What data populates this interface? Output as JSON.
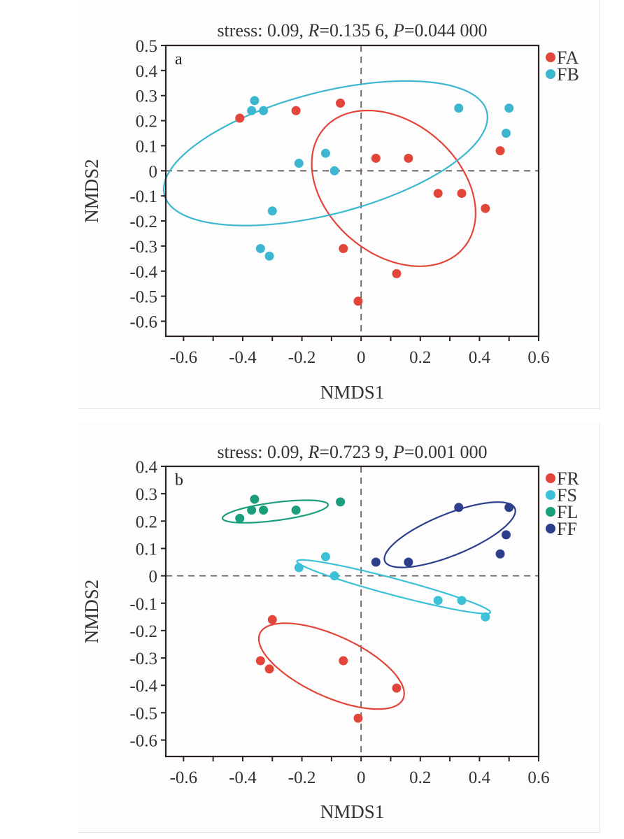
{
  "chart_data": [
    {
      "type": "scatter",
      "panel_label": "a",
      "title_parts": {
        "prefix": "stress: 0.09, ",
        "r_sym": "R",
        "r_val": "=0.135 6, ",
        "p_sym": "P",
        "p_val": "=0.044 000"
      },
      "xlabel": "NMDS1",
      "ylabel": "NMDS2",
      "xlim": [
        -0.66,
        0.6
      ],
      "ylim": [
        -0.66,
        0.5
      ],
      "xticks": [
        -0.6,
        -0.5,
        -0.4,
        -0.3,
        -0.2,
        -0.1,
        0,
        0.1,
        0.2,
        0.3,
        0.4,
        0.5,
        0.6
      ],
      "xtick_labels": [
        {
          "v": -0.6,
          "t": "-0.6"
        },
        {
          "v": -0.4,
          "t": "-0.4"
        },
        {
          "v": -0.2,
          "t": "-0.2"
        },
        {
          "v": 0,
          "t": "0"
        },
        {
          "v": 0.2,
          "t": "0.2"
        },
        {
          "v": 0.4,
          "t": "0.4"
        },
        {
          "v": 0.6,
          "t": "0.6"
        }
      ],
      "ytick_labels": [
        {
          "v": 0.5,
          "t": "0.5"
        },
        {
          "v": 0.4,
          "t": "0.4"
        },
        {
          "v": 0.3,
          "t": "0.3"
        },
        {
          "v": 0.2,
          "t": "0.2"
        },
        {
          "v": 0.1,
          "t": "0.1"
        },
        {
          "v": 0,
          "t": "0"
        },
        {
          "v": -0.1,
          "t": "-0.1"
        },
        {
          "v": -0.2,
          "t": "-0.2"
        },
        {
          "v": -0.3,
          "t": "-0.3"
        },
        {
          "v": -0.4,
          "t": "-0.4"
        },
        {
          "v": -0.5,
          "t": "-0.5"
        },
        {
          "v": -0.6,
          "t": "-0.6"
        }
      ],
      "reference_lines": {
        "x": 0,
        "y": 0,
        "style": "dashed"
      },
      "legend_position": "outside-top-right",
      "series": [
        {
          "name": "FA",
          "color": "#e2463a",
          "points": [
            [
              -0.41,
              0.21
            ],
            [
              -0.22,
              0.24
            ],
            [
              -0.07,
              0.27
            ],
            [
              0.05,
              0.05
            ],
            [
              0.16,
              0.05
            ],
            [
              0.47,
              0.08
            ],
            [
              0.26,
              -0.09
            ],
            [
              0.34,
              -0.09
            ],
            [
              0.42,
              -0.15
            ],
            [
              -0.06,
              -0.31
            ],
            [
              0.12,
              -0.41
            ],
            [
              -0.01,
              -0.52
            ]
          ],
          "ellipse": {
            "cx": 0.11,
            "cy": -0.07,
            "rx": 0.34,
            "ry": 0.24,
            "angle_deg": -55
          }
        },
        {
          "name": "FB",
          "color": "#3cb7cf",
          "points": [
            [
              -0.36,
              0.28
            ],
            [
              -0.37,
              0.24
            ],
            [
              -0.33,
              0.24
            ],
            [
              -0.21,
              0.03
            ],
            [
              -0.12,
              0.07
            ],
            [
              -0.09,
              0.0
            ],
            [
              -0.3,
              -0.16
            ],
            [
              -0.34,
              -0.31
            ],
            [
              -0.31,
              -0.34
            ],
            [
              0.33,
              0.25
            ],
            [
              0.5,
              0.25
            ],
            [
              0.49,
              0.15
            ]
          ],
          "ellipse": {
            "cx": -0.12,
            "cy": 0.07,
            "rx": 0.57,
            "ry": 0.24,
            "angle_deg": 18
          }
        }
      ]
    },
    {
      "type": "scatter",
      "panel_label": "b",
      "title_parts": {
        "prefix": "stress: 0.09, ",
        "r_sym": "R",
        "r_val": "=0.723 9, ",
        "p_sym": "P",
        "p_val": "=0.001 000"
      },
      "xlabel": "NMDS1",
      "ylabel": "NMDS2",
      "xlim": [
        -0.66,
        0.6
      ],
      "ylim": [
        -0.66,
        0.4
      ],
      "xticks": [
        -0.6,
        -0.5,
        -0.4,
        -0.3,
        -0.2,
        -0.1,
        0,
        0.1,
        0.2,
        0.3,
        0.4,
        0.5,
        0.6
      ],
      "xtick_labels": [
        {
          "v": -0.6,
          "t": "-0.6"
        },
        {
          "v": -0.4,
          "t": "-0.4"
        },
        {
          "v": -0.2,
          "t": "-0.2"
        },
        {
          "v": 0,
          "t": "0"
        },
        {
          "v": 0.2,
          "t": "0.2"
        },
        {
          "v": 0.4,
          "t": "0.4"
        },
        {
          "v": 0.6,
          "t": "0.6"
        }
      ],
      "ytick_labels": [
        {
          "v": 0.4,
          "t": "0.4"
        },
        {
          "v": 0.3,
          "t": "0.3"
        },
        {
          "v": 0.2,
          "t": "0.2"
        },
        {
          "v": 0.1,
          "t": "0.1"
        },
        {
          "v": 0,
          "t": "0"
        },
        {
          "v": -0.1,
          "t": "-0.1"
        },
        {
          "v": -0.2,
          "t": "-0.2"
        },
        {
          "v": -0.3,
          "t": "-0.3"
        },
        {
          "v": -0.4,
          "t": "-0.4"
        },
        {
          "v": -0.5,
          "t": "-0.5"
        },
        {
          "v": -0.6,
          "t": "-0.6"
        }
      ],
      "reference_lines": {
        "x": 0,
        "y": 0,
        "style": "dashed"
      },
      "legend_position": "outside-top-right",
      "series": [
        {
          "name": "FR",
          "color": "#e2463a",
          "points": [
            [
              -0.3,
              -0.16
            ],
            [
              -0.34,
              -0.31
            ],
            [
              -0.31,
              -0.34
            ],
            [
              -0.06,
              -0.31
            ],
            [
              0.12,
              -0.41
            ],
            [
              -0.01,
              -0.52
            ]
          ],
          "ellipse": {
            "cx": -0.1,
            "cy": -0.33,
            "rx": 0.27,
            "ry": 0.11,
            "angle_deg": -27
          }
        },
        {
          "name": "FS",
          "color": "#3cc1d6",
          "points": [
            [
              -0.21,
              0.03
            ],
            [
              -0.12,
              0.07
            ],
            [
              -0.09,
              0.0
            ],
            [
              0.26,
              -0.09
            ],
            [
              0.34,
              -0.09
            ],
            [
              0.42,
              -0.15
            ]
          ],
          "ellipse": {
            "cx": 0.11,
            "cy": -0.04,
            "rx": 0.34,
            "ry": 0.03,
            "angle_deg": -16
          }
        },
        {
          "name": "FL",
          "color": "#1a9e7c",
          "points": [
            [
              -0.41,
              0.21
            ],
            [
              -0.37,
              0.24
            ],
            [
              -0.36,
              0.28
            ],
            [
              -0.33,
              0.24
            ],
            [
              -0.22,
              0.24
            ],
            [
              -0.07,
              0.27
            ]
          ],
          "ellipse": {
            "cx": -0.29,
            "cy": 0.235,
            "rx": 0.18,
            "ry": 0.033,
            "angle_deg": 8
          }
        },
        {
          "name": "FF",
          "color": "#2d3f8c",
          "points": [
            [
              0.05,
              0.05
            ],
            [
              0.16,
              0.05
            ],
            [
              0.33,
              0.25
            ],
            [
              0.5,
              0.25
            ],
            [
              0.49,
              0.15
            ],
            [
              0.47,
              0.08
            ]
          ],
          "ellipse": {
            "cx": 0.3,
            "cy": 0.15,
            "rx": 0.24,
            "ry": 0.075,
            "angle_deg": 24
          }
        }
      ]
    }
  ]
}
